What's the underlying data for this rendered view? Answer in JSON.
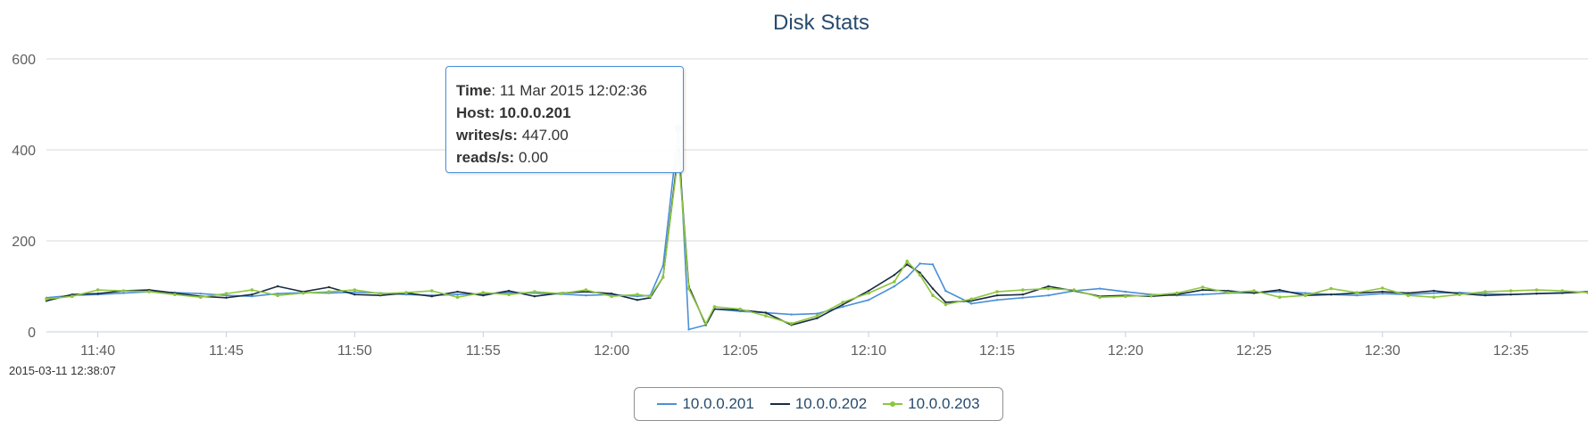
{
  "chart_data": {
    "type": "line",
    "title": "Disk Stats",
    "ylim": [
      0,
      600
    ],
    "yticks": [
      "0",
      "200",
      "400",
      "600"
    ],
    "xrange": [
      "11:38:00",
      "12:38:00"
    ],
    "xticks": [
      "11:40",
      "11:45",
      "11:50",
      "11:55",
      "12:00",
      "12:05",
      "12:10",
      "12:15",
      "12:20",
      "12:25",
      "12:30",
      "12:35"
    ],
    "grid": true,
    "legend_position": "bottom-center",
    "series": [
      {
        "name": "10.0.0.201",
        "color": "#4a90d9",
        "points": [
          [
            "11:38",
            75
          ],
          [
            "11:39",
            80
          ],
          [
            "11:40",
            82
          ],
          [
            "11:41",
            85
          ],
          [
            "11:42",
            88
          ],
          [
            "11:43",
            86
          ],
          [
            "11:44",
            84
          ],
          [
            "11:45",
            80
          ],
          [
            "11:46",
            78
          ],
          [
            "11:47",
            84
          ],
          [
            "11:48",
            86
          ],
          [
            "11:49",
            85
          ],
          [
            "11:50",
            87
          ],
          [
            "11:51",
            85
          ],
          [
            "11:52",
            82
          ],
          [
            "11:53",
            80
          ],
          [
            "11:54",
            82
          ],
          [
            "11:55",
            84
          ],
          [
            "11:56",
            86
          ],
          [
            "11:57",
            85
          ],
          [
            "11:58",
            83
          ],
          [
            "11:59",
            80
          ],
          [
            "12:00",
            82
          ],
          [
            "12:01",
            78
          ],
          [
            "12:01:30",
            80
          ],
          [
            "12:02",
            145
          ],
          [
            "12:02:36",
            447
          ],
          [
            "12:03",
            5
          ],
          [
            "12:03:40",
            15
          ],
          [
            "12:04",
            50
          ],
          [
            "12:05",
            45
          ],
          [
            "12:06",
            42
          ],
          [
            "12:07",
            38
          ],
          [
            "12:08",
            40
          ],
          [
            "12:09",
            55
          ],
          [
            "12:10",
            70
          ],
          [
            "12:11",
            100
          ],
          [
            "12:11:30",
            120
          ],
          [
            "12:12",
            150
          ],
          [
            "12:12:30",
            148
          ],
          [
            "12:13",
            90
          ],
          [
            "12:14",
            62
          ],
          [
            "12:15",
            70
          ],
          [
            "12:16",
            75
          ],
          [
            "12:17",
            80
          ],
          [
            "12:18",
            90
          ],
          [
            "12:19",
            95
          ],
          [
            "12:20",
            88
          ],
          [
            "12:21",
            82
          ],
          [
            "12:22",
            80
          ],
          [
            "12:23",
            82
          ],
          [
            "12:24",
            85
          ],
          [
            "12:25",
            86
          ],
          [
            "12:26",
            88
          ],
          [
            "12:27",
            85
          ],
          [
            "12:28",
            82
          ],
          [
            "12:29",
            80
          ],
          [
            "12:30",
            84
          ],
          [
            "12:31",
            82
          ],
          [
            "12:32",
            85
          ],
          [
            "12:33",
            86
          ],
          [
            "12:34",
            84
          ],
          [
            "12:35",
            82
          ],
          [
            "12:36",
            84
          ],
          [
            "12:37",
            86
          ],
          [
            "12:38",
            88
          ]
        ]
      },
      {
        "name": "10.0.0.202",
        "color": "#1a2c3e",
        "points": [
          [
            "11:38",
            68
          ],
          [
            "11:39",
            82
          ],
          [
            "11:40",
            84
          ],
          [
            "11:41",
            90
          ],
          [
            "11:42",
            92
          ],
          [
            "11:43",
            85
          ],
          [
            "11:44",
            78
          ],
          [
            "11:45",
            75
          ],
          [
            "11:46",
            82
          ],
          [
            "11:47",
            100
          ],
          [
            "11:48",
            88
          ],
          [
            "11:49",
            98
          ],
          [
            "11:50",
            82
          ],
          [
            "11:51",
            80
          ],
          [
            "11:52",
            85
          ],
          [
            "11:53",
            78
          ],
          [
            "11:54",
            88
          ],
          [
            "11:55",
            80
          ],
          [
            "11:56",
            90
          ],
          [
            "11:57",
            78
          ],
          [
            "11:58",
            85
          ],
          [
            "11:59",
            88
          ],
          [
            "12:00",
            84
          ],
          [
            "12:01",
            70
          ],
          [
            "12:01:30",
            75
          ],
          [
            "12:02",
            120
          ],
          [
            "12:02:36",
            400
          ],
          [
            "12:03",
            100
          ],
          [
            "12:03:40",
            15
          ],
          [
            "12:04",
            50
          ],
          [
            "12:05",
            48
          ],
          [
            "12:06",
            42
          ],
          [
            "12:07",
            15
          ],
          [
            "12:08",
            30
          ],
          [
            "12:09",
            60
          ],
          [
            "12:10",
            90
          ],
          [
            "12:11",
            125
          ],
          [
            "12:11:30",
            148
          ],
          [
            "12:12",
            130
          ],
          [
            "12:12:30",
            95
          ],
          [
            "12:13",
            65
          ],
          [
            "12:14",
            68
          ],
          [
            "12:15",
            80
          ],
          [
            "12:16",
            82
          ],
          [
            "12:17",
            100
          ],
          [
            "12:18",
            90
          ],
          [
            "12:19",
            78
          ],
          [
            "12:20",
            80
          ],
          [
            "12:21",
            78
          ],
          [
            "12:22",
            82
          ],
          [
            "12:23",
            92
          ],
          [
            "12:24",
            90
          ],
          [
            "12:25",
            85
          ],
          [
            "12:26",
            92
          ],
          [
            "12:27",
            80
          ],
          [
            "12:28",
            82
          ],
          [
            "12:29",
            85
          ],
          [
            "12:30",
            88
          ],
          [
            "12:31",
            85
          ],
          [
            "12:32",
            90
          ],
          [
            "12:33",
            84
          ],
          [
            "12:34",
            80
          ],
          [
            "12:35",
            82
          ],
          [
            "12:36",
            84
          ],
          [
            "12:37",
            85
          ],
          [
            "12:38",
            88
          ]
        ]
      },
      {
        "name": "10.0.0.203",
        "color": "#8dc63f",
        "points": [
          [
            "11:38",
            72
          ],
          [
            "11:39",
            78
          ],
          [
            "11:40",
            92
          ],
          [
            "11:41",
            90
          ],
          [
            "11:42",
            88
          ],
          [
            "11:43",
            82
          ],
          [
            "11:44",
            76
          ],
          [
            "11:45",
            84
          ],
          [
            "11:46",
            92
          ],
          [
            "11:47",
            80
          ],
          [
            "11:48",
            85
          ],
          [
            "11:49",
            88
          ],
          [
            "11:50",
            92
          ],
          [
            "11:51",
            84
          ],
          [
            "11:52",
            86
          ],
          [
            "11:53",
            90
          ],
          [
            "11:54",
            76
          ],
          [
            "11:55",
            86
          ],
          [
            "11:56",
            82
          ],
          [
            "11:57",
            88
          ],
          [
            "11:58",
            84
          ],
          [
            "11:59",
            92
          ],
          [
            "12:00",
            78
          ],
          [
            "12:01",
            82
          ],
          [
            "12:01:30",
            78
          ],
          [
            "12:02",
            120
          ],
          [
            "12:02:36",
            390
          ],
          [
            "12:03",
            95
          ],
          [
            "12:03:40",
            18
          ],
          [
            "12:04",
            55
          ],
          [
            "12:05",
            50
          ],
          [
            "12:06",
            35
          ],
          [
            "12:07",
            18
          ],
          [
            "12:08",
            35
          ],
          [
            "12:09",
            65
          ],
          [
            "12:10",
            85
          ],
          [
            "12:11",
            110
          ],
          [
            "12:11:30",
            155
          ],
          [
            "12:12",
            125
          ],
          [
            "12:12:30",
            80
          ],
          [
            "12:13",
            60
          ],
          [
            "12:14",
            72
          ],
          [
            "12:15",
            88
          ],
          [
            "12:16",
            92
          ],
          [
            "12:17",
            95
          ],
          [
            "12:18",
            92
          ],
          [
            "12:19",
            76
          ],
          [
            "12:20",
            78
          ],
          [
            "12:21",
            80
          ],
          [
            "12:22",
            85
          ],
          [
            "12:23",
            98
          ],
          [
            "12:24",
            86
          ],
          [
            "12:25",
            90
          ],
          [
            "12:26",
            76
          ],
          [
            "12:27",
            80
          ],
          [
            "12:28",
            95
          ],
          [
            "12:29",
            86
          ],
          [
            "12:30",
            96
          ],
          [
            "12:31",
            80
          ],
          [
            "12:32",
            76
          ],
          [
            "12:33",
            82
          ],
          [
            "12:34",
            88
          ],
          [
            "12:35",
            90
          ],
          [
            "12:36",
            92
          ],
          [
            "12:37",
            90
          ],
          [
            "12:38",
            86
          ]
        ]
      }
    ],
    "highlight_point": {
      "series": "10.0.0.201",
      "x": "12:02:36",
      "y": 447
    }
  },
  "timestamp": "2015-03-11 12:38:07",
  "tooltip": {
    "time_label": "Time",
    "time_value": "11 Mar 2015 12:02:36",
    "host_label": "Host:",
    "host_value": "10.0.0.201",
    "writes_label": "writes/s:",
    "writes_value": "447.00",
    "reads_label": "reads/s:",
    "reads_value": "0.00"
  },
  "legend": [
    {
      "label": "10.0.0.201",
      "color": "#4a90d9"
    },
    {
      "label": "10.0.0.202",
      "color": "#1a2c3e"
    },
    {
      "label": "10.0.0.203",
      "color": "#8dc63f"
    }
  ]
}
